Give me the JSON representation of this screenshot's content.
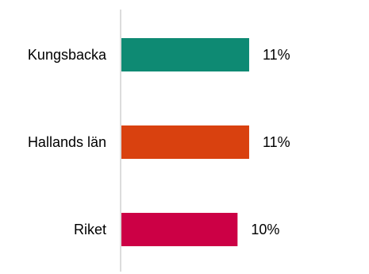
{
  "chart_data": {
    "type": "bar",
    "orientation": "horizontal",
    "title": "",
    "xlabel": "",
    "ylabel": "",
    "categories": [
      "Kungsbacka",
      "Hallands län",
      "Riket"
    ],
    "values": [
      11,
      11,
      10
    ],
    "value_labels": [
      "11%",
      "11%",
      "10%"
    ],
    "colors": [
      "#0e8a73",
      "#d9410f",
      "#cc0045"
    ],
    "axis_color": "#d0d0d0",
    "xlim": [
      0,
      20.5
    ],
    "grid": false,
    "legend": "none"
  }
}
